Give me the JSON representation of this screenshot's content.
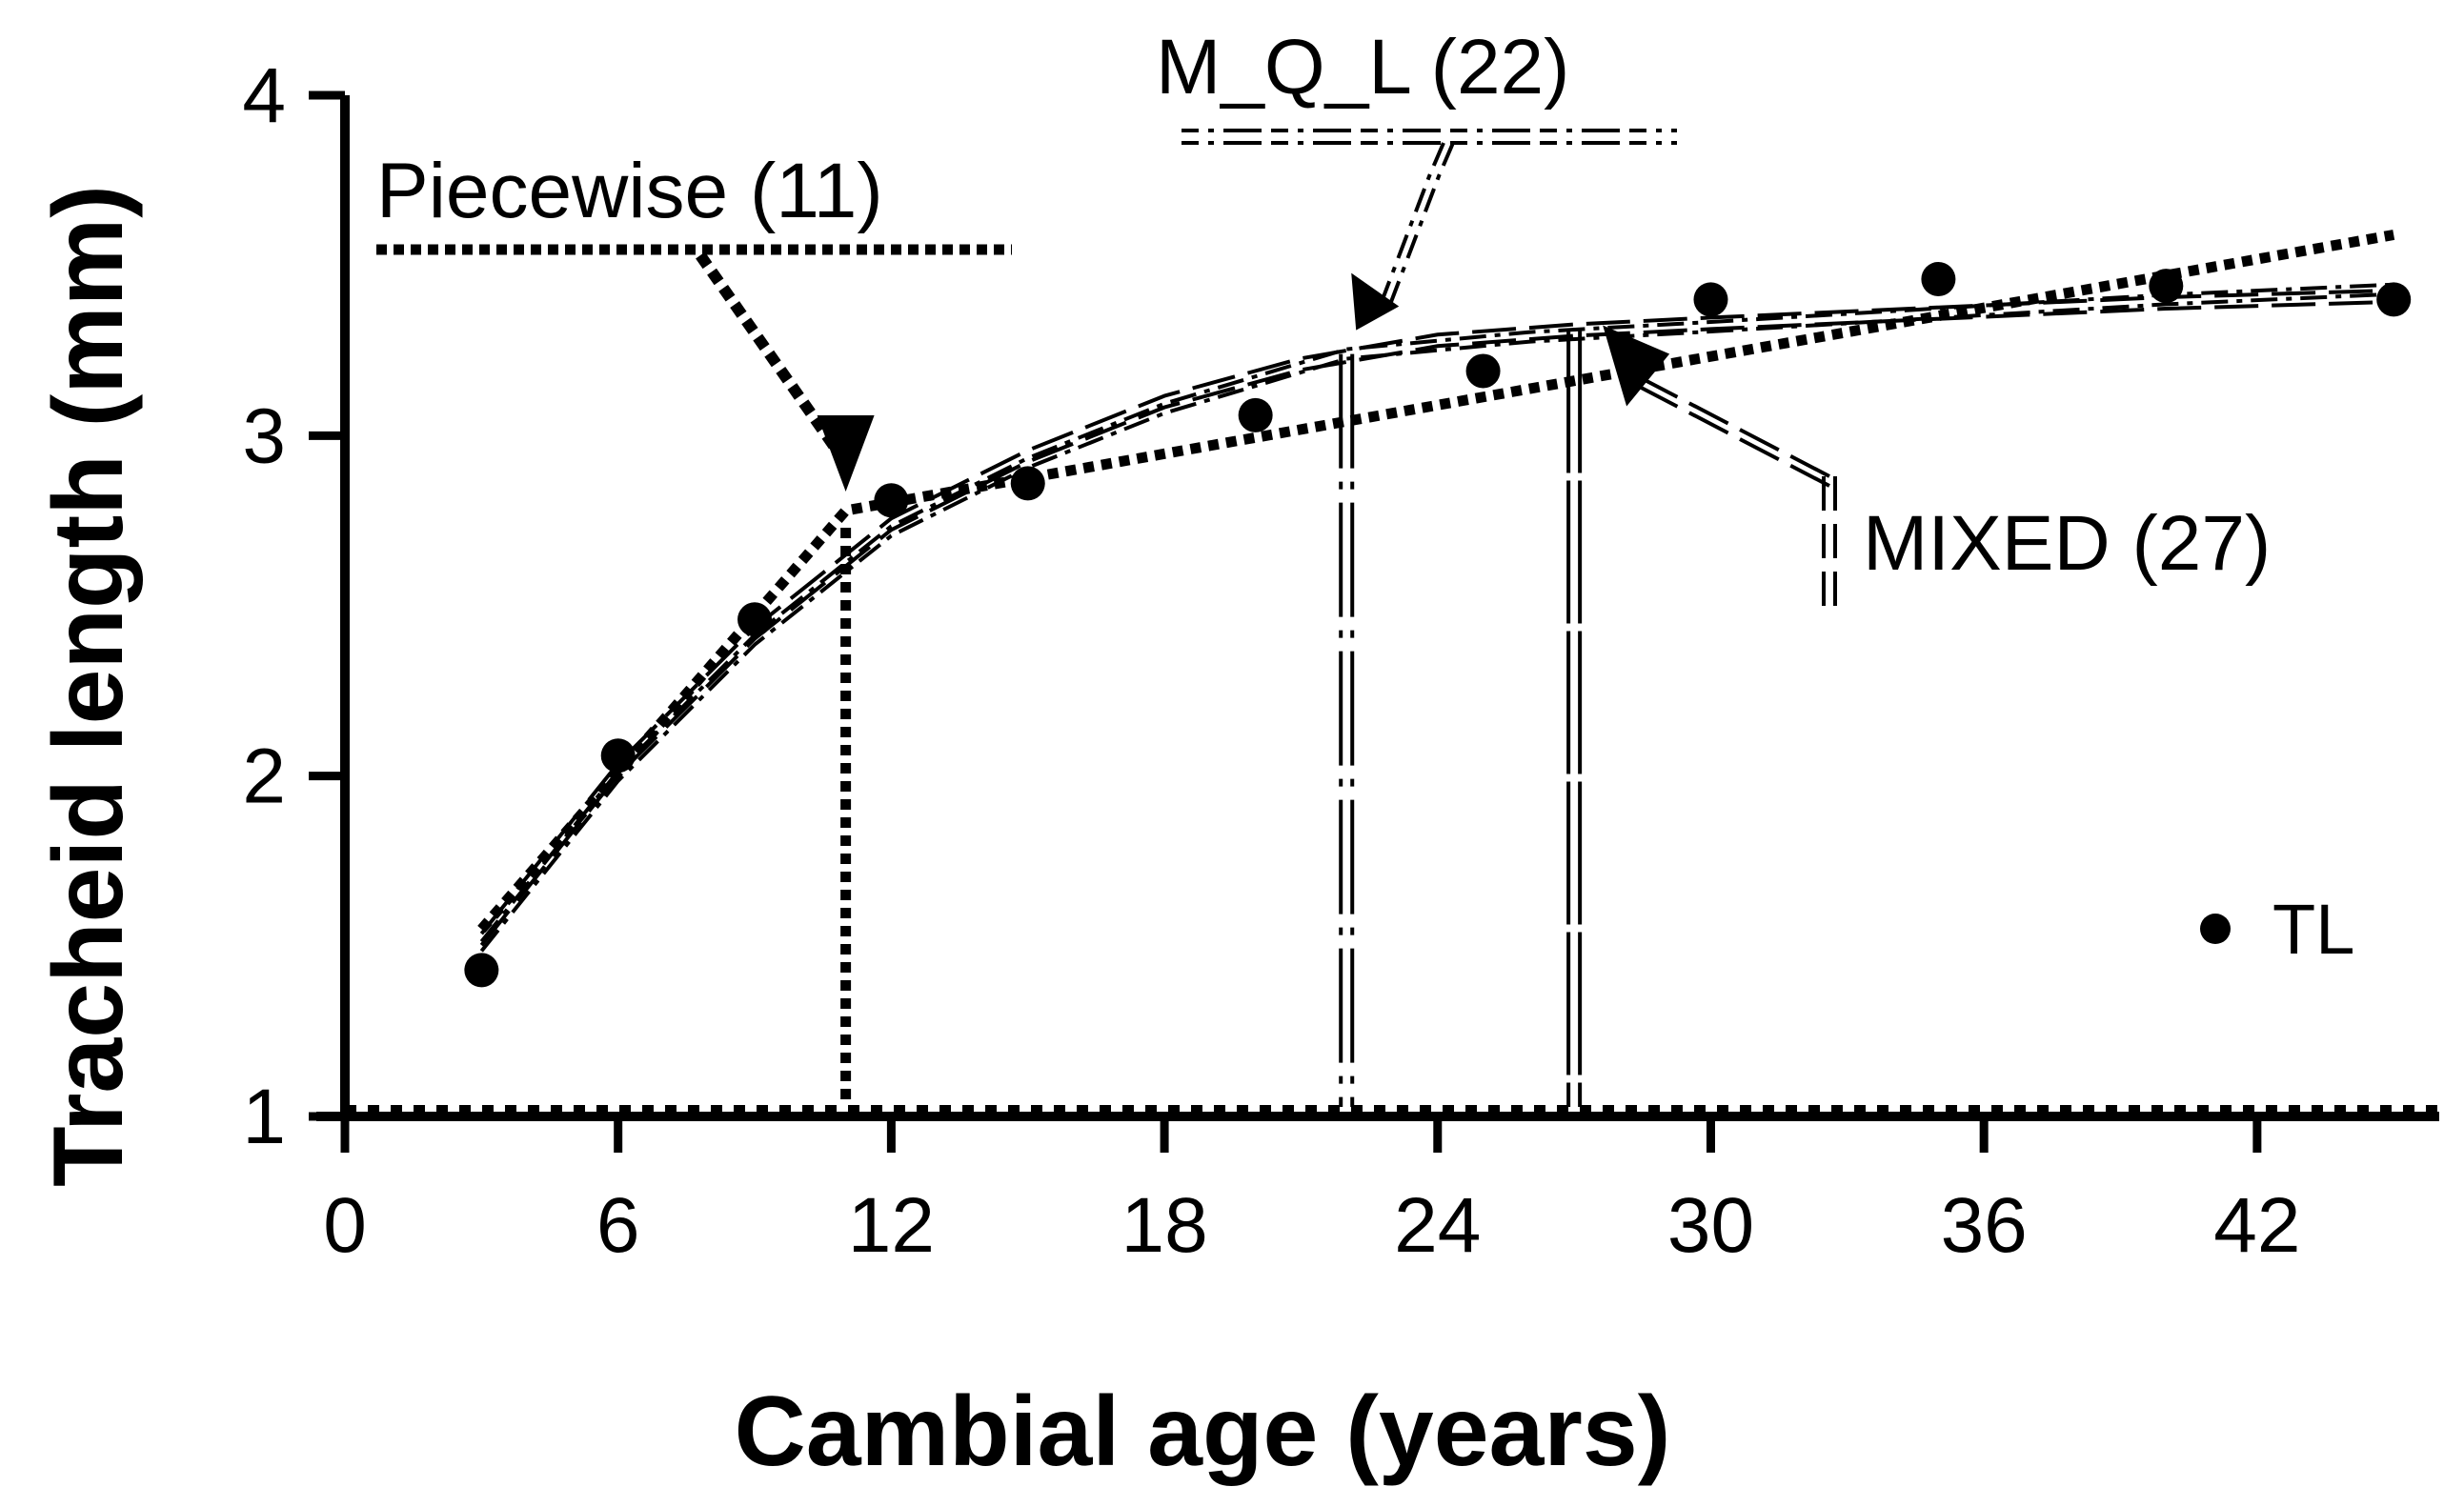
{
  "chart_data": {
    "type": "scatter",
    "xlabel": "Cambial age (years)",
    "ylabel": "Tracheid length (mm)",
    "xlim": [
      0,
      46
    ],
    "ylim": [
      1,
      4
    ],
    "xticks": [
      0,
      6,
      12,
      18,
      24,
      30,
      36,
      42
    ],
    "yticks": [
      1,
      2,
      3,
      4
    ],
    "legend": {
      "position": "bottom-right",
      "label": "TL"
    },
    "series": [
      {
        "name": "TL",
        "kind": "points",
        "x": [
          3,
          6,
          9,
          12,
          15,
          20,
          25,
          30,
          35,
          40,
          45
        ],
        "y": [
          1.43,
          2.06,
          2.46,
          2.81,
          2.86,
          3.06,
          3.19,
          3.4,
          3.46,
          3.44,
          3.4
        ]
      },
      {
        "name": "Piecewise",
        "kind": "fit",
        "style": "dotted-heavy",
        "x": [
          3,
          11,
          45
        ],
        "y": [
          1.55,
          2.78,
          3.59
        ]
      },
      {
        "name": "M_Q_L",
        "kind": "fit",
        "style": "dash-dot-double",
        "x": [
          3,
          6,
          9,
          12,
          15,
          18,
          22,
          26,
          30,
          35,
          40,
          45
        ],
        "y": [
          1.5,
          2.0,
          2.4,
          2.72,
          2.92,
          3.08,
          3.24,
          3.29,
          3.32,
          3.36,
          3.4,
          3.43
        ]
      },
      {
        "name": "MIXED",
        "kind": "fit",
        "style": "long-dash-double",
        "x": [
          3,
          6,
          9,
          12,
          15,
          18,
          21,
          24,
          27,
          30,
          35,
          40,
          45
        ],
        "y": [
          1.52,
          2.02,
          2.42,
          2.74,
          2.94,
          3.1,
          3.21,
          3.28,
          3.31,
          3.33,
          3.36,
          3.39,
          3.41
        ]
      }
    ],
    "breakpoints": [
      {
        "name": "Piecewise",
        "x": 11,
        "y": 2.78,
        "label": "Piecewise  (11)"
      },
      {
        "name": "M_Q_L",
        "x": 22,
        "y": 3.24,
        "label": "M_Q_L (22)"
      },
      {
        "name": "MIXED",
        "x": 27,
        "y": 3.31,
        "label": "MIXED (27)"
      }
    ]
  }
}
